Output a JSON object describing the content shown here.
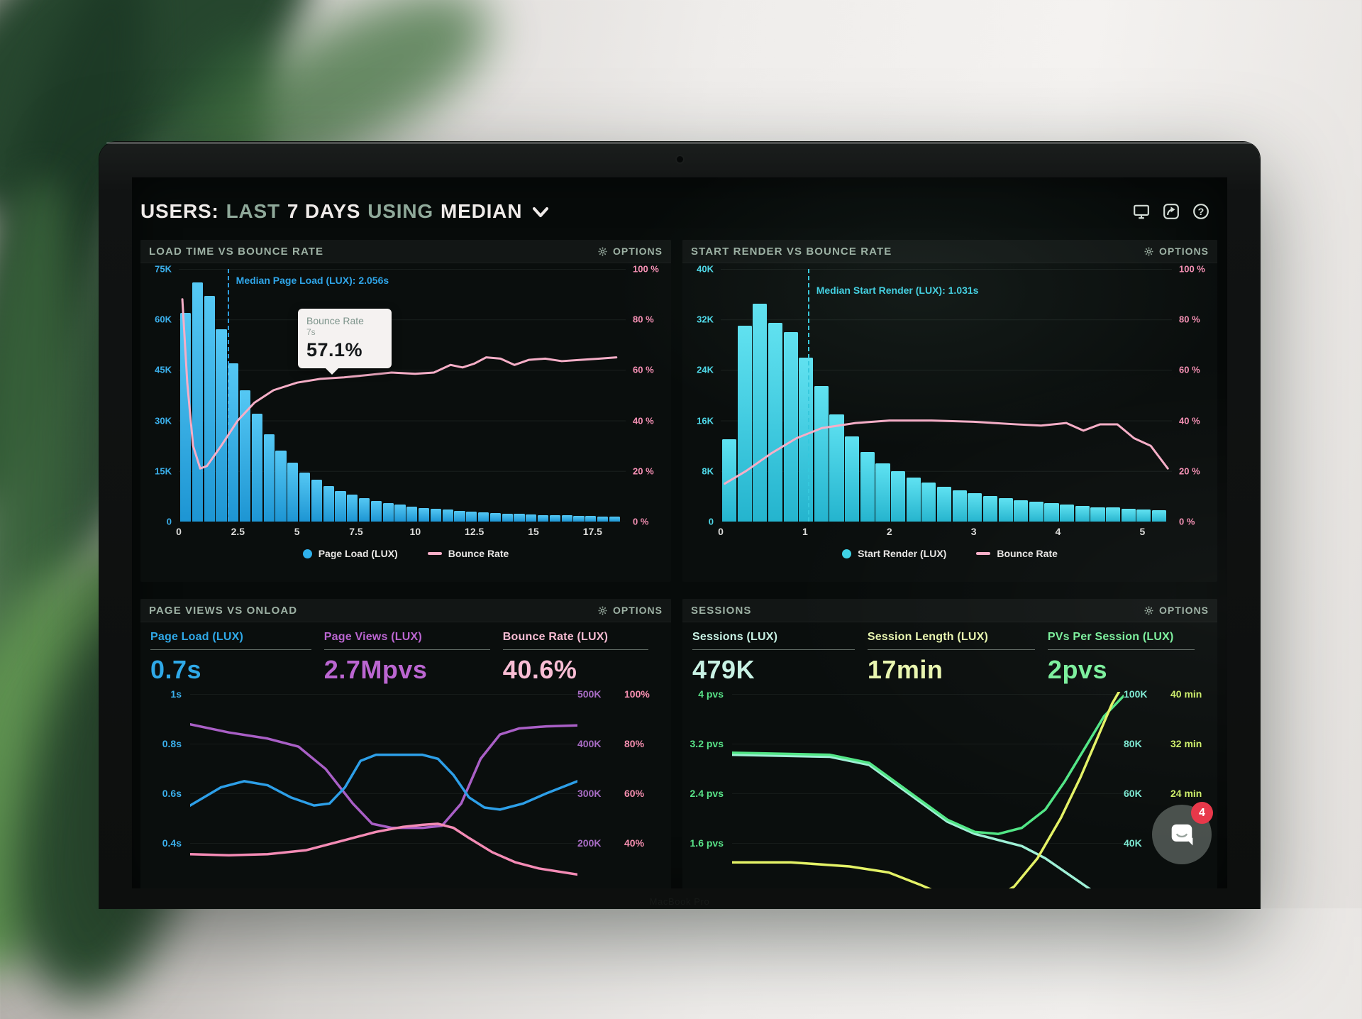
{
  "header": {
    "segments": [
      {
        "text": "USERS:",
        "style": "strong"
      },
      {
        "text": "LAST",
        "style": "muted"
      },
      {
        "text": "7 DAYS",
        "style": "strong"
      },
      {
        "text": "USING",
        "style": "muted"
      },
      {
        "text": "MEDIAN",
        "style": "strong"
      }
    ],
    "icons": [
      "display-icon",
      "share-icon",
      "help-icon"
    ]
  },
  "panels": {
    "load_time": {
      "title": "LOAD TIME VS BOUNCE RATE",
      "options_label": "OPTIONS",
      "annotation": "Median Page Load (LUX): 2.056s",
      "tooltip": {
        "title": "Bounce Rate",
        "subtitle": "7s",
        "value": "57.1%"
      },
      "y_left": [
        "75K",
        "60K",
        "45K",
        "30K",
        "15K",
        "0"
      ],
      "y_right": [
        "100 %",
        "80 %",
        "60 %",
        "40 %",
        "20 %",
        "0 %"
      ],
      "x_ticks": [
        "0",
        "2.5",
        "5",
        "7.5",
        "10",
        "12.5",
        "15",
        "17.5"
      ],
      "legend": [
        {
          "label": "Page Load (LUX)",
          "marker": "dot",
          "color": "#2fb1ec"
        },
        {
          "label": "Bounce Rate",
          "marker": "line",
          "color": "#f6aec7"
        }
      ]
    },
    "start_render": {
      "title": "START RENDER VS BOUNCE RATE",
      "options_label": "OPTIONS",
      "annotation": "Median Start Render (LUX): 1.031s",
      "y_left": [
        "40K",
        "32K",
        "24K",
        "16K",
        "8K",
        "0"
      ],
      "y_right": [
        "100 %",
        "80 %",
        "60 %",
        "40 %",
        "20 %",
        "0 %"
      ],
      "x_ticks": [
        "0",
        "1",
        "2",
        "3",
        "4",
        "5"
      ],
      "legend": [
        {
          "label": "Start Render (LUX)",
          "marker": "dot",
          "color": "#3ed3e6"
        },
        {
          "label": "Bounce Rate",
          "marker": "line",
          "color": "#f6aec7"
        }
      ]
    },
    "page_views": {
      "title": "PAGE VIEWS VS ONLOAD",
      "options_label": "OPTIONS",
      "metrics": [
        {
          "label": "Page Load (LUX)",
          "value": "0.7s"
        },
        {
          "label": "Page Views (LUX)",
          "value": "2.7Mpvs"
        },
        {
          "label": "Bounce Rate (LUX)",
          "value": "40.6%"
        }
      ],
      "y_left": [
        "1s",
        "0.8s",
        "0.6s",
        "0.4s"
      ],
      "y_right_k": [
        "500K",
        "400K",
        "300K",
        "200K"
      ],
      "y_right_pct": [
        "100%",
        "80%",
        "60%",
        "40%"
      ]
    },
    "sessions": {
      "title": "SESSIONS",
      "options_label": "OPTIONS",
      "metrics": [
        {
          "label": "Sessions (LUX)",
          "value": "479K"
        },
        {
          "label": "Session Length (LUX)",
          "value": "17min"
        },
        {
          "label": "PVs Per Session (LUX)",
          "value": "2pvs"
        }
      ],
      "y_left": [
        "4 pvs",
        "3.2 pvs",
        "2.4 pvs",
        "1.6 pvs"
      ],
      "y_right_k": [
        "100K",
        "80K",
        "60K",
        "40K"
      ],
      "y_right_min": [
        "40 min",
        "32 min",
        "24 min",
        ""
      ]
    }
  },
  "chat": {
    "badge": "4"
  },
  "laptop": {
    "brand": "MacBook Pro"
  },
  "chart_data": [
    {
      "id": "load-time-vs-bounce-rate",
      "type": "bar+line",
      "title": "LOAD TIME VS BOUNCE RATE",
      "x_unit": "seconds",
      "x_range": [
        0,
        18.9
      ],
      "x_ticks": [
        0,
        2.5,
        5,
        7.5,
        10,
        12.5,
        15,
        17.5
      ],
      "y_left": {
        "name": "Page Load (LUX)",
        "unit": "K users",
        "max": 75,
        "ticks": [
          75,
          60,
          45,
          30,
          15,
          0
        ]
      },
      "y_right": {
        "name": "Bounce Rate",
        "unit": "%",
        "max": 100,
        "ticks": [
          100,
          80,
          60,
          40,
          20,
          0
        ]
      },
      "bars": {
        "name": "Page Load (LUX)",
        "color": "#2fb1ec",
        "x_start": 0.25,
        "x_step": 0.5,
        "values_k": [
          62,
          71,
          67,
          57,
          47,
          39,
          32,
          26,
          21,
          17.5,
          14.5,
          12.5,
          10.5,
          9,
          8,
          7,
          6.2,
          5.5,
          5,
          4.5,
          4.1,
          3.8,
          3.5,
          3.2,
          3,
          2.8,
          2.6,
          2.4,
          2.3,
          2.1,
          2,
          1.9,
          1.8,
          1.7,
          1.6,
          1.5,
          1.5
        ]
      },
      "median": {
        "label": "Median Page Load (LUX): 2.056s",
        "x": 2.056
      },
      "lines": [
        {
          "name": "Bounce Rate",
          "color": "#f6aec7",
          "width": 3,
          "points_pct": [
            [
              0.8,
              88
            ],
            [
              1.9,
              55
            ],
            [
              3.2,
              30
            ],
            [
              4.8,
              21
            ],
            [
              6.3,
              22
            ],
            [
              9.5,
              30
            ],
            [
              13.2,
              40
            ],
            [
              16.9,
              47
            ],
            [
              21.2,
              52
            ],
            [
              26.5,
              55
            ],
            [
              31.7,
              56.5
            ],
            [
              37,
              57.1
            ],
            [
              42.3,
              58
            ],
            [
              47.6,
              59
            ],
            [
              52.9,
              58.5
            ],
            [
              57.1,
              59
            ],
            [
              60.8,
              62
            ],
            [
              63.5,
              61
            ],
            [
              66.1,
              62.5
            ],
            [
              68.8,
              65
            ],
            [
              72,
              64.5
            ],
            [
              75.1,
              62
            ],
            [
              78.3,
              64
            ],
            [
              82,
              64.5
            ],
            [
              85.7,
              63.5
            ],
            [
              89.9,
              64
            ],
            [
              94.2,
              64.5
            ],
            [
              97.9,
              65
            ]
          ]
        }
      ],
      "tooltip": {
        "series": "Bounce Rate",
        "x": "7s",
        "value": "57.1%"
      }
    },
    {
      "id": "start-render-vs-bounce-rate",
      "type": "bar+line",
      "title": "START RENDER VS BOUNCE RATE",
      "x_unit": "seconds",
      "x_range": [
        0,
        5.35
      ],
      "x_ticks": [
        0,
        1,
        2,
        3,
        4,
        5
      ],
      "y_left": {
        "name": "Start Render (LUX)",
        "unit": "K users",
        "max": 40,
        "ticks": [
          40,
          32,
          24,
          16,
          8,
          0
        ]
      },
      "y_right": {
        "name": "Bounce Rate",
        "unit": "%",
        "max": 100,
        "ticks": [
          100,
          80,
          60,
          40,
          20,
          0
        ]
      },
      "bars": {
        "name": "Start Render (LUX)",
        "color": "#3ed3e6",
        "x_start": 0.09,
        "x_step": 0.18,
        "values_k": [
          13,
          31,
          34.5,
          31.5,
          30,
          26,
          21.5,
          17,
          13.5,
          11,
          9.2,
          8,
          7,
          6.2,
          5.5,
          5,
          4.5,
          4.1,
          3.7,
          3.4,
          3.1,
          2.9,
          2.7,
          2.5,
          2.3,
          2.2,
          2,
          1.9,
          1.8
        ]
      },
      "median": {
        "label": "Median Start Render (LUX): 1.031s",
        "x": 1.031
      },
      "lines": [
        {
          "name": "Bounce Rate",
          "color": "#f6aec7",
          "width": 3,
          "points_pct": [
            [
              0.9,
              15
            ],
            [
              5.6,
              20
            ],
            [
              11.2,
              27
            ],
            [
              16.8,
              33
            ],
            [
              22.4,
              37
            ],
            [
              29.9,
              39
            ],
            [
              37.4,
              40
            ],
            [
              46.7,
              40
            ],
            [
              56.1,
              39.5
            ],
            [
              65.4,
              38.5
            ],
            [
              71,
              38
            ],
            [
              76.6,
              39
            ],
            [
              80.4,
              36
            ],
            [
              84.1,
              38.5
            ],
            [
              87.9,
              38.5
            ],
            [
              91.6,
              33
            ],
            [
              95.3,
              30
            ],
            [
              99.1,
              21
            ]
          ]
        }
      ]
    },
    {
      "id": "page-views-vs-onload",
      "type": "line",
      "title": "PAGE VIEWS VS ONLOAD",
      "y_left": {
        "unit": "seconds",
        "ticks": [
          "1s",
          "0.8s",
          "0.6s",
          "0.4s"
        ]
      },
      "y_right": {
        "ticks_k": [
          "500K",
          "400K",
          "300K",
          "200K"
        ],
        "ticks_pct": [
          "100%",
          "80%",
          "60%",
          "40%"
        ]
      },
      "lines": [
        {
          "name": "Page Views (LUX)",
          "color": "#a95fc6",
          "width": 3.5,
          "points_pct": [
            [
              0,
              84
            ],
            [
              10,
              80
            ],
            [
              20,
              77
            ],
            [
              28,
              73
            ],
            [
              35,
              62
            ],
            [
              42,
              45
            ],
            [
              47,
              35
            ],
            [
              52,
              33
            ],
            [
              60,
              33
            ],
            [
              65,
              34
            ],
            [
              70,
              45
            ],
            [
              75,
              67
            ],
            [
              80,
              79
            ],
            [
              85,
              82
            ],
            [
              92,
              83
            ],
            [
              100,
              83.5
            ]
          ]
        },
        {
          "name": "Page Load (LUX)",
          "color": "#2d9fe8",
          "width": 3.5,
          "points_pct": [
            [
              0,
              44
            ],
            [
              8,
              53
            ],
            [
              14,
              56
            ],
            [
              20,
              54
            ],
            [
              26,
              48
            ],
            [
              32,
              44
            ],
            [
              36,
              45
            ],
            [
              40,
              53
            ],
            [
              44,
              66
            ],
            [
              48,
              69
            ],
            [
              56,
              69
            ],
            [
              60,
              69
            ],
            [
              64,
              67
            ],
            [
              68,
              59
            ],
            [
              72,
              48
            ],
            [
              76,
              43
            ],
            [
              80,
              42
            ],
            [
              86,
              45
            ],
            [
              92,
              50
            ],
            [
              100,
              56
            ]
          ]
        },
        {
          "name": "Bounce Rate (LUX)",
          "color": "#f48bb5",
          "width": 3.5,
          "points_pct": [
            [
              0,
              20
            ],
            [
              10,
              19.5
            ],
            [
              20,
              20
            ],
            [
              30,
              22
            ],
            [
              40,
              27
            ],
            [
              48,
              31
            ],
            [
              55,
              33.5
            ],
            [
              60,
              34.5
            ],
            [
              64,
              35
            ],
            [
              68,
              33
            ],
            [
              72,
              28
            ],
            [
              78,
              21
            ],
            [
              84,
              16
            ],
            [
              90,
              13
            ],
            [
              100,
              10
            ]
          ]
        }
      ]
    },
    {
      "id": "sessions",
      "type": "line",
      "title": "SESSIONS",
      "y_left": {
        "ticks": [
          "4 pvs",
          "3.2 pvs",
          "2.4 pvs",
          "1.6 pvs"
        ]
      },
      "y_right": {
        "ticks_k": [
          "100K",
          "80K",
          "60K",
          "40K"
        ],
        "ticks_min": [
          "40 min",
          "32 min",
          "24 min",
          ""
        ]
      },
      "lines": [
        {
          "name": "Sessions (LUX)",
          "color": "#9ef0d6",
          "width": 3.5,
          "points_pct": [
            [
              0,
              69
            ],
            [
              25,
              68
            ],
            [
              35,
              64
            ],
            [
              45,
              50
            ],
            [
              55,
              36
            ],
            [
              62,
              30
            ],
            [
              68,
              27
            ],
            [
              74,
              24
            ],
            [
              80,
              18
            ],
            [
              86,
              10
            ],
            [
              92,
              2
            ],
            [
              100,
              -6
            ]
          ]
        },
        {
          "name": "PVs Per Session (LUX)",
          "color": "#52e686",
          "width": 3.5,
          "points_pct": [
            [
              0,
              70
            ],
            [
              25,
              69
            ],
            [
              35,
              65
            ],
            [
              45,
              51
            ],
            [
              55,
              37
            ],
            [
              62,
              31
            ],
            [
              68,
              30
            ],
            [
              74,
              33
            ],
            [
              80,
              42
            ],
            [
              85,
              56
            ],
            [
              90,
              72
            ],
            [
              95,
              88
            ],
            [
              100,
              98
            ]
          ]
        },
        {
          "name": "Session Length (LUX)",
          "color": "#e4f266",
          "width": 3.5,
          "points_pct": [
            [
              0,
              16
            ],
            [
              15,
              16
            ],
            [
              30,
              14
            ],
            [
              40,
              11
            ],
            [
              48,
              5
            ],
            [
              54,
              0
            ],
            [
              60,
              -4
            ],
            [
              66,
              -3
            ],
            [
              72,
              4
            ],
            [
              78,
              18
            ],
            [
              84,
              38
            ],
            [
              89,
              58
            ],
            [
              93,
              76
            ],
            [
              97,
              94
            ],
            [
              100,
              104
            ]
          ]
        }
      ]
    }
  ]
}
